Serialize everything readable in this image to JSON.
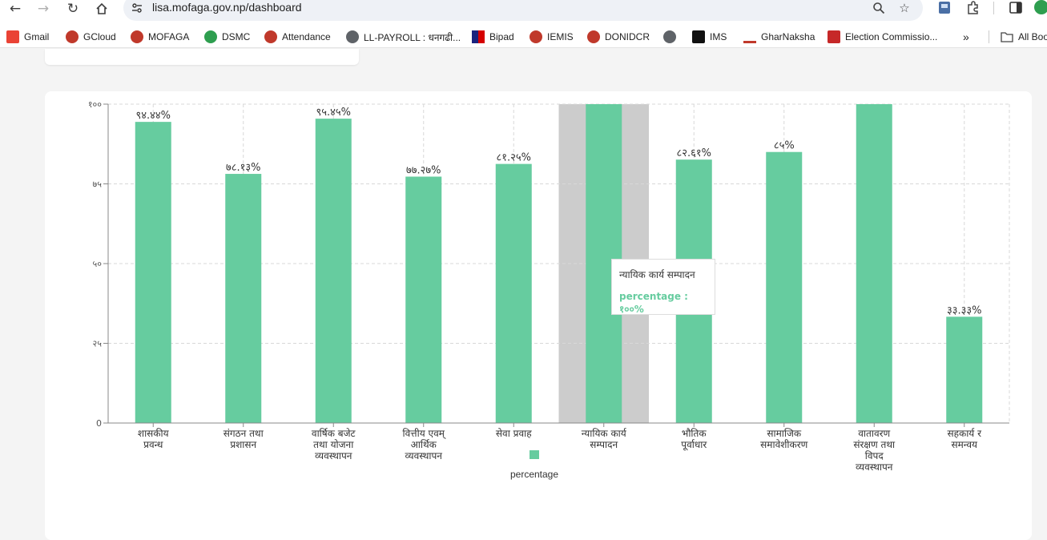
{
  "browser": {
    "url": "lisa.mofaga.gov.np/dashboard"
  },
  "bookmarks": [
    {
      "label": "Gmail",
      "color": "#ea4335"
    },
    {
      "label": "GCloud",
      "color": "#c0392b"
    },
    {
      "label": "MOFAGA",
      "color": "#c0392b"
    },
    {
      "label": "DSMC",
      "color": "#2e9e4f"
    },
    {
      "label": "Attendance",
      "color": "#c0392b"
    },
    {
      "label": "LL-PAYROLL : धनगढी...",
      "color": "#5f6368"
    },
    {
      "label": "Bipad",
      "color": "#1a237e"
    },
    {
      "label": "IEMIS",
      "color": "#c0392b"
    },
    {
      "label": "DONIDCR",
      "color": "#c0392b"
    },
    {
      "label": "",
      "color": "#5f6368"
    },
    {
      "label": "IMS",
      "color": "#111111"
    },
    {
      "label": "GharNaksha",
      "color": "#c0392b"
    },
    {
      "label": "Election Commissio...",
      "color": "#c62828"
    },
    {
      "label": "All Boo",
      "color": "#444444"
    }
  ],
  "chart_data": {
    "type": "bar",
    "categories": [
      [
        "शासकीय",
        "प्रवन्ध"
      ],
      [
        "संगठन तथा",
        "प्रशासन"
      ],
      [
        "वार्षिक बजेट",
        "तथा योजना",
        "व्यवस्थापन"
      ],
      [
        "वित्तीय एवम्",
        "आर्थिक",
        "व्यवस्थापन"
      ],
      [
        "सेवा प्रवाह"
      ],
      [
        "न्यायिक कार्य",
        "सम्पादन"
      ],
      [
        "भौतिक",
        "पूर्वाधार"
      ],
      [
        "सामाजिक",
        "समावेशीकरण"
      ],
      [
        "वातावरण",
        "संरक्षण तथा",
        "विपद",
        "व्यवस्थापन"
      ],
      [
        "सहकार्य र",
        "समन्वय"
      ]
    ],
    "series": [
      {
        "name": "percentage",
        "values": [
          94.44,
          78.13,
          95.45,
          77.27,
          81.25,
          100,
          82.61,
          85,
          100,
          33.33
        ],
        "labels": [
          "९४.४४%",
          "७८.१३%",
          "९५.४५%",
          "७७.२७%",
          "८१.२५%",
          "",
          "८२.६१%",
          "८५%",
          "",
          "३३.३३%"
        ]
      }
    ],
    "ylim": [
      0,
      100
    ],
    "yticks": [
      0,
      25,
      50,
      75,
      100
    ],
    "ytick_labels": [
      "0",
      "२५",
      "५०",
      "७५",
      "१००"
    ],
    "grid": true,
    "legend": "bottom",
    "bar_color": "#66cc9f",
    "highlight_color": "#cccccc",
    "highlight_index": 5
  },
  "tooltip": {
    "title": "न्यायिक कार्य सम्पादन",
    "value": "percentage : १००%",
    "color": "#66cc9f"
  }
}
